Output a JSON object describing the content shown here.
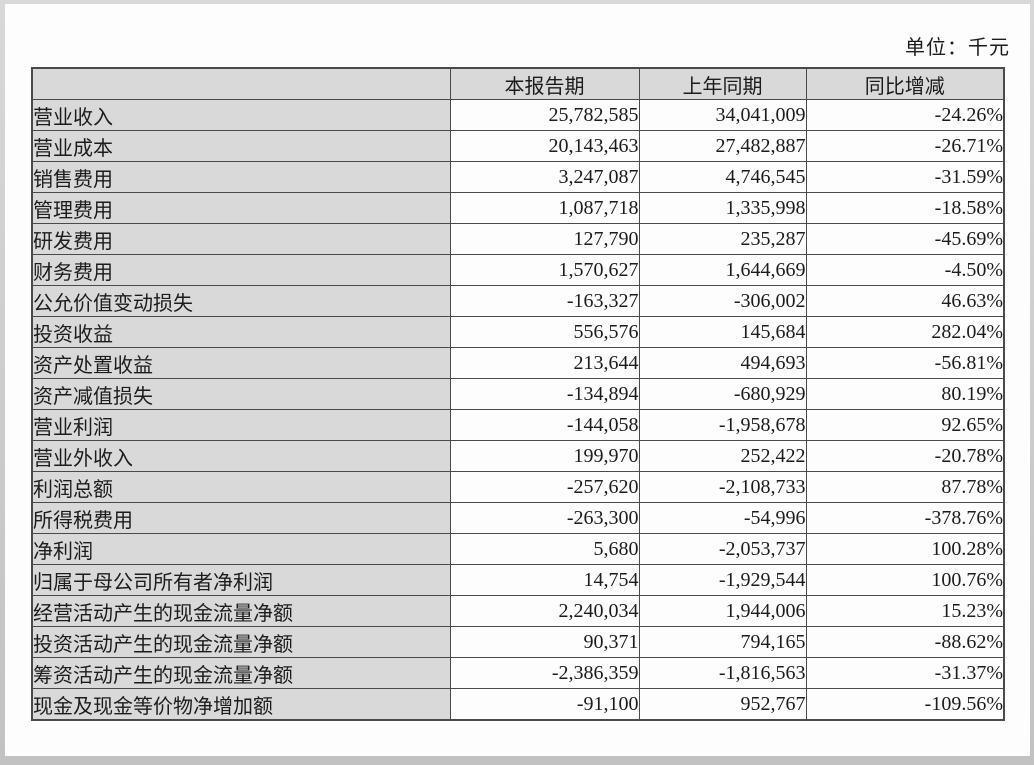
{
  "page": {
    "unit_label": "单位：千元"
  },
  "table": {
    "columns": [
      "",
      "本报告期",
      "上年同期",
      "同比增减"
    ],
    "rows": [
      {
        "label": "营业收入",
        "current": "25,782,585",
        "prior": "34,041,009",
        "change": "-24.26%"
      },
      {
        "label": "营业成本",
        "current": "20,143,463",
        "prior": "27,482,887",
        "change": "-26.71%"
      },
      {
        "label": "销售费用",
        "current": "3,247,087",
        "prior": "4,746,545",
        "change": "-31.59%"
      },
      {
        "label": "管理费用",
        "current": "1,087,718",
        "prior": "1,335,998",
        "change": "-18.58%"
      },
      {
        "label": "研发费用",
        "current": "127,790",
        "prior": "235,287",
        "change": "-45.69%"
      },
      {
        "label": "财务费用",
        "current": "1,570,627",
        "prior": "1,644,669",
        "change": "-4.50%"
      },
      {
        "label": "公允价值变动损失",
        "current": "-163,327",
        "prior": "-306,002",
        "change": "46.63%"
      },
      {
        "label": "投资收益",
        "current": "556,576",
        "prior": "145,684",
        "change": "282.04%"
      },
      {
        "label": "资产处置收益",
        "current": "213,644",
        "prior": "494,693",
        "change": "-56.81%"
      },
      {
        "label": "资产减值损失",
        "current": "-134,894",
        "prior": "-680,929",
        "change": "80.19%"
      },
      {
        "label": "营业利润",
        "current": "-144,058",
        "prior": "-1,958,678",
        "change": "92.65%"
      },
      {
        "label": "营业外收入",
        "current": "199,970",
        "prior": "252,422",
        "change": "-20.78%"
      },
      {
        "label": "利润总额",
        "current": "-257,620",
        "prior": "-2,108,733",
        "change": "87.78%"
      },
      {
        "label": "所得税费用",
        "current": "-263,300",
        "prior": "-54,996",
        "change": "-378.76%"
      },
      {
        "label": "净利润",
        "current": "5,680",
        "prior": "-2,053,737",
        "change": "100.28%"
      },
      {
        "label": "归属于母公司所有者净利润",
        "current": "14,754",
        "prior": "-1,929,544",
        "change": "100.76%"
      },
      {
        "label": "经营活动产生的现金流量净额",
        "current": "2,240,034",
        "prior": "1,944,006",
        "change": "15.23%"
      },
      {
        "label": "投资活动产生的现金流量净额",
        "current": "90,371",
        "prior": "794,165",
        "change": "-88.62%"
      },
      {
        "label": "筹资活动产生的现金流量净额",
        "current": "-2,386,359",
        "prior": "-1,816,563",
        "change": "-31.37%"
      },
      {
        "label": "现金及现金等价物净增加额",
        "current": "-91,100",
        "prior": "952,767",
        "change": "-109.56%"
      }
    ]
  },
  "colors": {
    "header_bg": "#d9d9d9",
    "cell_bg": "#fdfdfd",
    "border": "#4a4a4a",
    "text": "#1c1c1c",
    "frame": "#cbcbcb"
  }
}
